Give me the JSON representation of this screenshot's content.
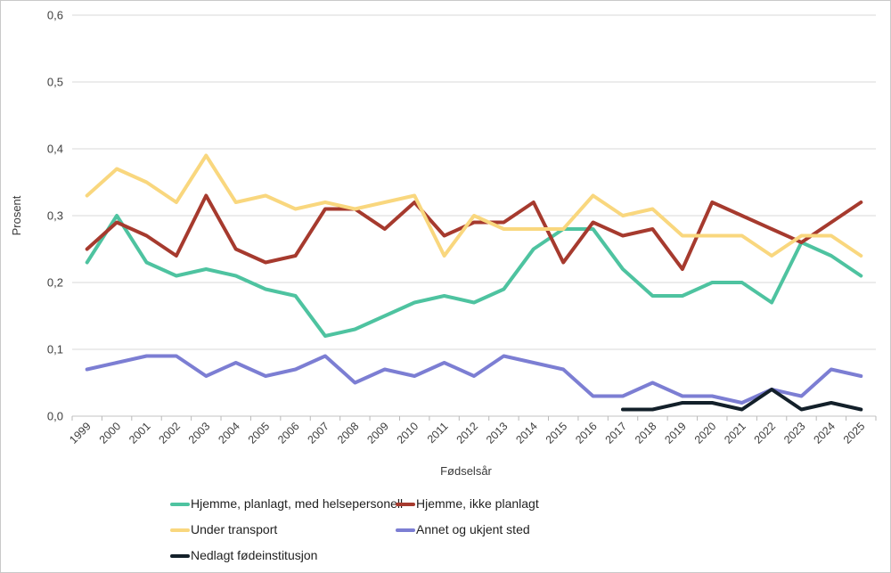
{
  "chart_data": {
    "type": "line",
    "title": "",
    "xlabel": "Fødselsår",
    "ylabel": "Prosent",
    "x": [
      "1999",
      "2000",
      "2001",
      "2002",
      "2003",
      "2004",
      "2005",
      "2006",
      "2007",
      "2008",
      "2009",
      "2010",
      "2011",
      "2012",
      "2013",
      "2014",
      "2015",
      "2016",
      "2017",
      "2018",
      "2019",
      "2020",
      "2021",
      "2022",
      "2023",
      "2024",
      "2025"
    ],
    "ylim": [
      0,
      0.6
    ],
    "y_ticks": {
      "values": [
        0,
        0.1,
        0.2,
        0.3,
        0.4,
        0.5,
        0.6
      ],
      "labels": [
        "0,0",
        "0,1",
        "0,2",
        "0,3",
        "0,4",
        "0,5",
        "0,6"
      ]
    },
    "grid": true,
    "legend_position": "bottom",
    "series": [
      {
        "name": "Hjemme, planlagt, med helsepersonell",
        "color": "#4ec3a0",
        "values": [
          0.23,
          0.3,
          0.23,
          0.21,
          0.22,
          0.21,
          0.19,
          0.18,
          0.12,
          0.13,
          0.15,
          0.17,
          0.18,
          0.17,
          0.19,
          0.25,
          0.28,
          0.28,
          0.22,
          0.18,
          0.18,
          0.2,
          0.2,
          0.17,
          0.26,
          0.24,
          0.21
        ]
      },
      {
        "name": "Hjemme, ikke planlagt",
        "color": "#a63a2e",
        "values": [
          0.25,
          0.29,
          0.27,
          0.24,
          0.33,
          0.25,
          0.23,
          0.24,
          0.31,
          0.31,
          0.28,
          0.32,
          0.27,
          0.29,
          0.29,
          0.32,
          0.23,
          0.29,
          0.27,
          0.28,
          0.22,
          0.32,
          0.3,
          0.28,
          0.26,
          0.29,
          0.32
        ]
      },
      {
        "name": "Under transport",
        "color": "#f9d77e",
        "values": [
          0.33,
          0.37,
          0.35,
          0.32,
          0.39,
          0.32,
          0.33,
          0.31,
          0.32,
          0.31,
          0.32,
          0.33,
          0.24,
          0.3,
          0.28,
          0.28,
          0.28,
          0.33,
          0.3,
          0.31,
          0.27,
          0.27,
          0.27,
          0.24,
          0.27,
          0.27,
          0.24
        ]
      },
      {
        "name": "Annet og ukjent sted",
        "color": "#7c7ed3",
        "values": [
          0.07,
          0.08,
          0.09,
          0.09,
          0.06,
          0.08,
          0.06,
          0.07,
          0.09,
          0.05,
          0.07,
          0.06,
          0.08,
          0.06,
          0.09,
          0.08,
          0.07,
          0.03,
          0.03,
          0.05,
          0.03,
          0.03,
          0.02,
          0.04,
          0.03,
          0.07,
          0.06
        ]
      },
      {
        "name": "Nedlagt fødeinstitusjon",
        "color": "#13202a",
        "values": [
          null,
          null,
          null,
          null,
          null,
          null,
          null,
          null,
          null,
          null,
          null,
          null,
          null,
          null,
          null,
          null,
          null,
          null,
          0.01,
          0.01,
          0.02,
          0.02,
          0.01,
          0.04,
          0.01,
          0.02,
          0.01
        ]
      }
    ],
    "colors": {
      "gridline": "#d9d9d9",
      "axis_line": "#c3c3c3",
      "tick": "#b9b9b9",
      "axis_text": "#404040",
      "legend_text": "#1f1f1f",
      "background": "#ffffff"
    }
  }
}
